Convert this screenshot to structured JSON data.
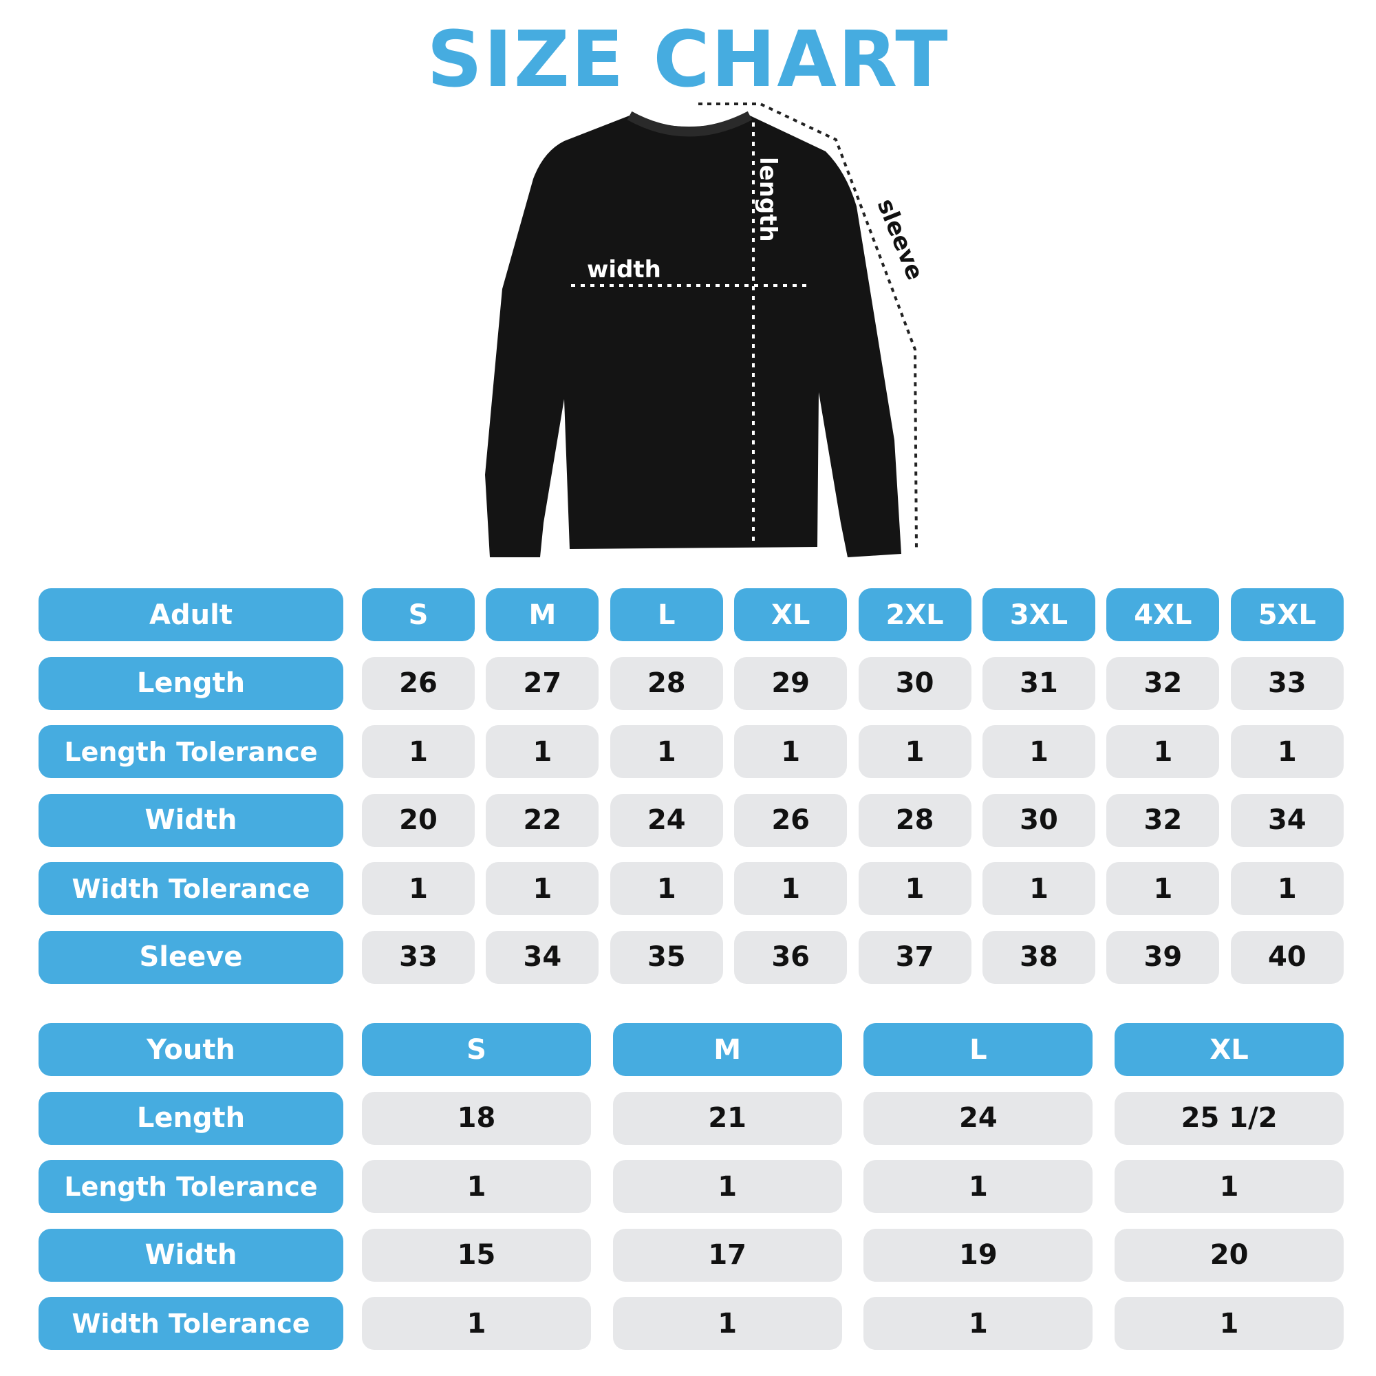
{
  "title": "SIZE CHART",
  "diagram": {
    "length_label": "length",
    "width_label": "width",
    "sleeve_label": "sleeve"
  },
  "colors": {
    "accent": "#46ace0",
    "cell": "#e6e7e9",
    "garment": "#141414"
  },
  "adult": {
    "header": "Adult",
    "sizes": [
      "S",
      "M",
      "L",
      "XL",
      "2XL",
      "3XL",
      "4XL",
      "5XL"
    ],
    "rows": [
      {
        "label": "Length",
        "values": [
          "26",
          "27",
          "28",
          "29",
          "30",
          "31",
          "32",
          "33"
        ]
      },
      {
        "label": "Length Tolerance",
        "values": [
          "1",
          "1",
          "1",
          "1",
          "1",
          "1",
          "1",
          "1"
        ]
      },
      {
        "label": "Width",
        "values": [
          "20",
          "22",
          "24",
          "26",
          "28",
          "30",
          "32",
          "34"
        ]
      },
      {
        "label": "Width Tolerance",
        "values": [
          "1",
          "1",
          "1",
          "1",
          "1",
          "1",
          "1",
          "1"
        ]
      },
      {
        "label": "Sleeve",
        "values": [
          "33",
          "34",
          "35",
          "36",
          "37",
          "38",
          "39",
          "40"
        ]
      }
    ]
  },
  "youth": {
    "header": "Youth",
    "sizes": [
      "S",
      "M",
      "L",
      "XL"
    ],
    "rows": [
      {
        "label": "Length",
        "values": [
          "18",
          "21",
          "24",
          "25 1/2"
        ]
      },
      {
        "label": "Length Tolerance",
        "values": [
          "1",
          "1",
          "1",
          "1"
        ]
      },
      {
        "label": "Width",
        "values": [
          "15",
          "17",
          "19",
          "20"
        ]
      },
      {
        "label": "Width Tolerance",
        "values": [
          "1",
          "1",
          "1",
          "1"
        ]
      }
    ]
  }
}
